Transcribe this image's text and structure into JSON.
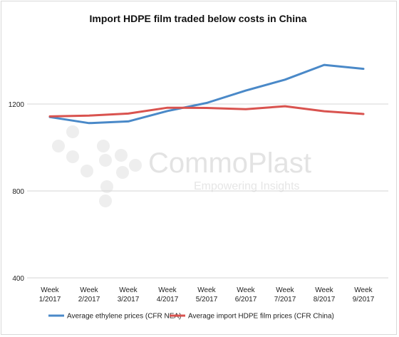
{
  "chart_data": {
    "type": "line",
    "title": "Import HDPE film traded below costs in China",
    "categories": [
      [
        "Week",
        "1/2017"
      ],
      [
        "Week",
        "2/2017"
      ],
      [
        "Week",
        "3/2017"
      ],
      [
        "Week",
        "4/2017"
      ],
      [
        "Week",
        "5/2017"
      ],
      [
        "Week",
        "6/2017"
      ],
      [
        "Week",
        "7/2017"
      ],
      [
        "Week",
        "8/2017"
      ],
      [
        "Week",
        "9/2017"
      ]
    ],
    "ylim": [
      400,
      1600
    ],
    "yticks": [
      400,
      800,
      1200
    ],
    "grid": true,
    "legend_position": "bottom",
    "series": [
      {
        "name": "Average ethylene prices (CFR NEA)",
        "color": "#4a89c8",
        "values": [
          1140,
          1112,
          1120,
          1168,
          1205,
          1262,
          1312,
          1380,
          1362
        ]
      },
      {
        "name": "Average import HDPE film prices (CFR China)",
        "color": "#d9534f",
        "values": [
          1143,
          1147,
          1156,
          1183,
          1182,
          1176,
          1190,
          1167,
          1154
        ]
      }
    ]
  },
  "watermark": {
    "brand": "CommoPlast",
    "tagline": "Empowering Insights"
  }
}
